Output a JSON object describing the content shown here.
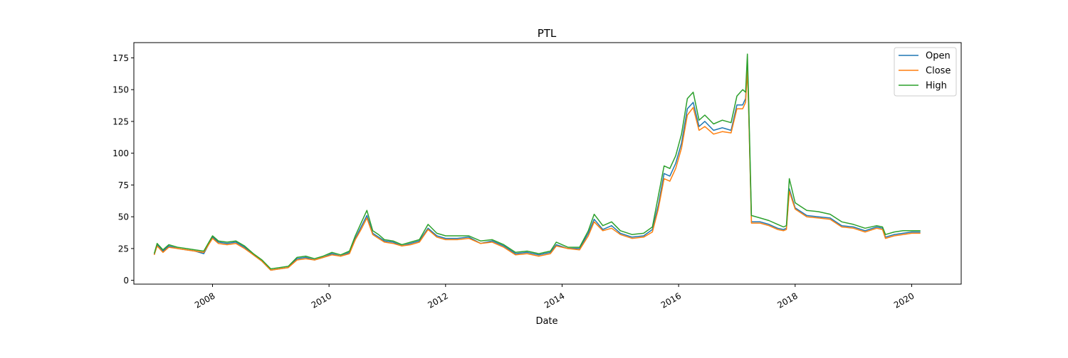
{
  "chart_data": {
    "type": "line",
    "title": "PTL",
    "xlabel": "Date",
    "ylabel": "",
    "xlim": [
      2006.65,
      2020.85
    ],
    "ylim": [
      -3,
      187
    ],
    "grid": false,
    "legend_position": "top-right",
    "x_ticks": [
      {
        "value": 2008,
        "label": "2008"
      },
      {
        "value": 2010,
        "label": "2010"
      },
      {
        "value": 2012,
        "label": "2012"
      },
      {
        "value": 2014,
        "label": "2014"
      },
      {
        "value": 2016,
        "label": "2016"
      },
      {
        "value": 2018,
        "label": "2018"
      },
      {
        "value": 2020,
        "label": "2020"
      }
    ],
    "y_ticks": [
      {
        "value": 0,
        "label": "0"
      },
      {
        "value": 25,
        "label": "25"
      },
      {
        "value": 50,
        "label": "50"
      },
      {
        "value": 75,
        "label": "75"
      },
      {
        "value": 100,
        "label": "100"
      },
      {
        "value": 125,
        "label": "125"
      },
      {
        "value": 150,
        "label": "150"
      },
      {
        "value": 175,
        "label": "175"
      }
    ],
    "x": [
      2007.0,
      2007.05,
      2007.15,
      2007.25,
      2007.4,
      2007.55,
      2007.7,
      2007.85,
      2008.0,
      2008.1,
      2008.25,
      2008.4,
      2008.55,
      2008.7,
      2008.85,
      2009.0,
      2009.15,
      2009.3,
      2009.45,
      2009.6,
      2009.75,
      2009.9,
      2010.05,
      2010.2,
      2010.35,
      2010.45,
      2010.55,
      2010.65,
      2010.75,
      2010.85,
      2010.95,
      2011.1,
      2011.25,
      2011.4,
      2011.55,
      2011.7,
      2011.85,
      2012.0,
      2012.2,
      2012.4,
      2012.6,
      2012.8,
      2013.0,
      2013.2,
      2013.4,
      2013.6,
      2013.8,
      2013.9,
      2014.1,
      2014.3,
      2014.45,
      2014.55,
      2014.7,
      2014.85,
      2015.0,
      2015.2,
      2015.4,
      2015.55,
      2015.65,
      2015.75,
      2015.85,
      2015.95,
      2016.05,
      2016.15,
      2016.25,
      2016.35,
      2016.45,
      2016.6,
      2016.75,
      2016.9,
      2017.0,
      2017.1,
      2017.15,
      2017.18,
      2017.2,
      2017.25,
      2017.4,
      2017.55,
      2017.7,
      2017.8,
      2017.85,
      2017.9,
      2018.0,
      2018.2,
      2018.4,
      2018.6,
      2018.8,
      2019.0,
      2019.2,
      2019.4,
      2019.5,
      2019.55,
      2019.7,
      2019.85,
      2020.0,
      2020.15
    ],
    "series": [
      {
        "name": "Open",
        "color": "#1f77b4",
        "values": [
          20,
          28,
          23,
          27,
          25,
          24,
          23,
          21,
          34,
          30,
          29,
          30,
          26,
          20,
          15,
          8,
          9,
          10,
          17,
          18,
          16,
          18,
          21,
          19,
          22,
          33,
          42,
          51,
          37,
          34,
          31,
          30,
          27,
          29,
          31,
          41,
          35,
          33,
          33,
          34,
          29,
          31,
          27,
          21,
          22,
          20,
          22,
          28,
          25,
          25,
          37,
          48,
          40,
          43,
          37,
          34,
          35,
          40,
          59,
          84,
          82,
          92,
          108,
          135,
          140,
          121,
          125,
          118,
          120,
          118,
          138,
          138,
          143,
          172,
          140,
          46,
          46,
          44,
          41,
          40,
          41,
          72,
          57,
          51,
          50,
          49,
          43,
          42,
          39,
          42,
          41,
          34,
          36,
          37,
          38,
          38
        ]
      },
      {
        "name": "Close",
        "color": "#ff7f0e",
        "values": [
          20,
          27,
          22,
          26,
          25,
          24,
          23,
          22,
          33,
          29,
          28,
          29,
          25,
          20,
          15,
          8,
          9,
          10,
          16,
          17,
          16,
          18,
          20,
          19,
          21,
          32,
          40,
          49,
          36,
          33,
          30,
          29,
          27,
          28,
          30,
          40,
          34,
          32,
          32,
          33,
          29,
          30,
          26,
          20,
          21,
          19,
          21,
          27,
          25,
          24,
          35,
          46,
          39,
          41,
          36,
          33,
          34,
          38,
          56,
          80,
          78,
          88,
          104,
          130,
          136,
          118,
          121,
          115,
          117,
          116,
          135,
          135,
          140,
          165,
          138,
          45,
          45,
          43,
          40,
          39,
          40,
          70,
          56,
          50,
          49,
          48,
          42,
          41,
          38,
          41,
          40,
          33,
          35,
          36,
          37,
          37
        ]
      },
      {
        "name": "High",
        "color": "#2ca02c",
        "values": [
          21,
          29,
          24,
          28,
          26,
          25,
          24,
          23,
          35,
          31,
          30,
          31,
          27,
          21,
          16,
          9,
          10,
          11,
          18,
          19,
          17,
          19,
          22,
          20,
          23,
          35,
          45,
          55,
          39,
          36,
          32,
          31,
          28,
          30,
          32,
          44,
          37,
          35,
          35,
          35,
          31,
          32,
          28,
          22,
          23,
          21,
          23,
          30,
          26,
          26,
          39,
          52,
          43,
          46,
          39,
          36,
          37,
          42,
          66,
          90,
          88,
          98,
          115,
          143,
          148,
          126,
          130,
          123,
          126,
          124,
          145,
          150,
          148,
          178,
          146,
          51,
          49,
          47,
          44,
          42,
          43,
          80,
          61,
          55,
          54,
          52,
          46,
          44,
          41,
          43,
          42,
          36,
          38,
          39,
          39,
          39
        ]
      }
    ]
  }
}
